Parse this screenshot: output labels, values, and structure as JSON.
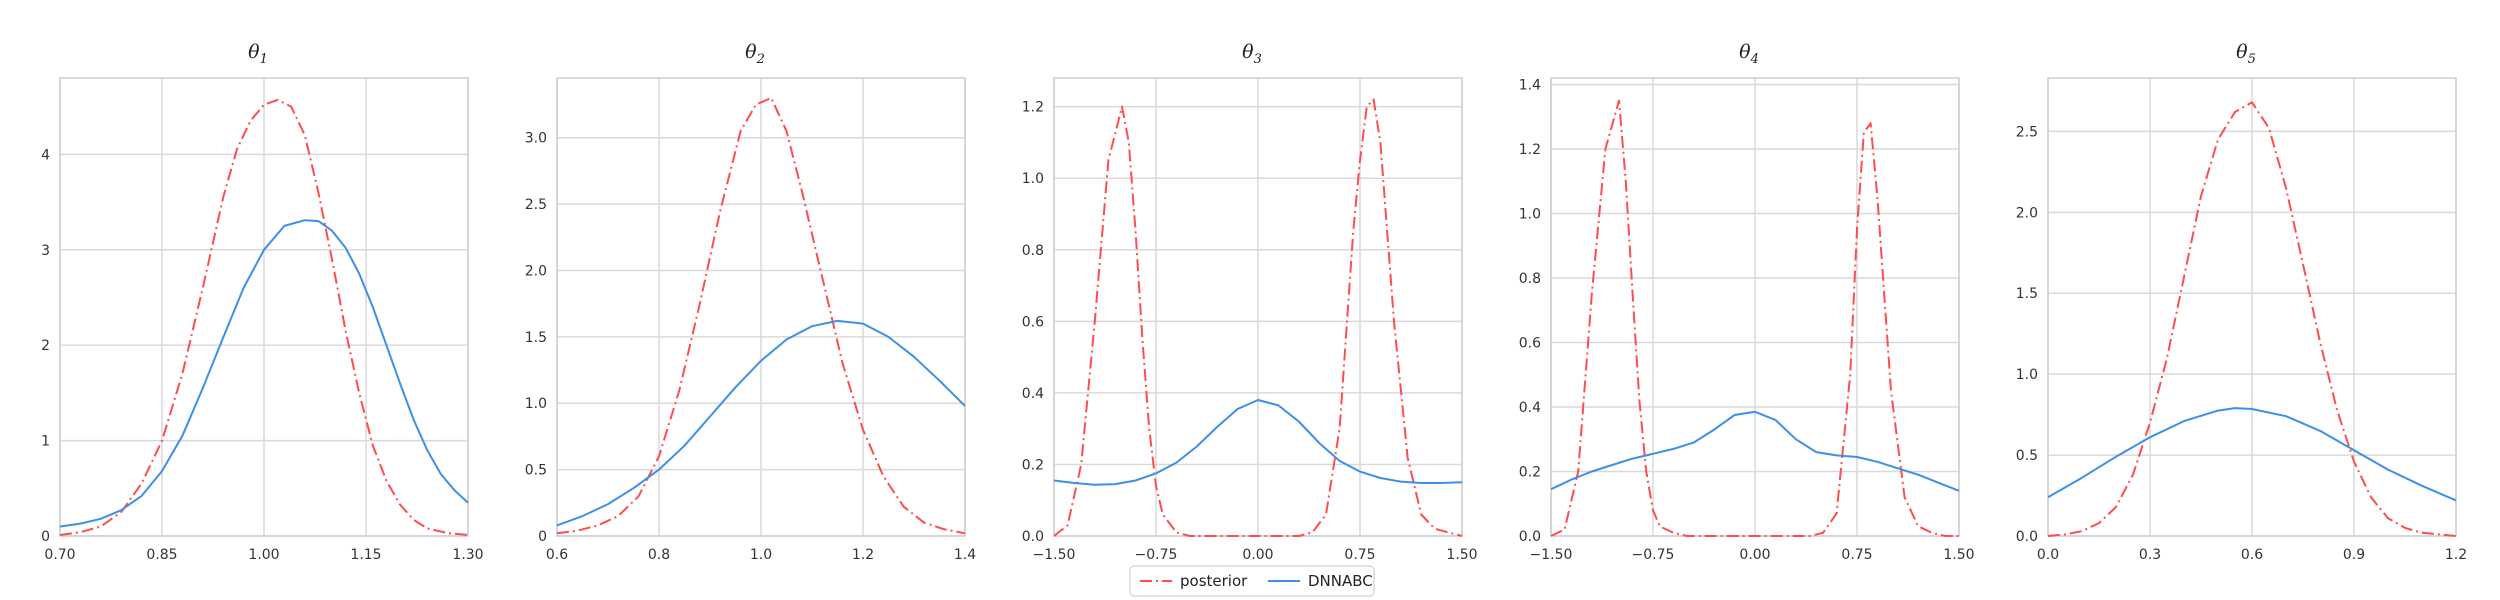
{
  "legend": {
    "placement": "bottom-center",
    "entries": [
      {
        "label": "posterior",
        "color": "#ff4d4d",
        "style": "dashdot"
      },
      {
        "label": "DNNABC",
        "color": "#3d8fe8",
        "style": "solid"
      }
    ]
  },
  "chart_data": [
    {
      "type": "line",
      "title_symbol": "θ",
      "title_sub": "1",
      "xlim": [
        0.7,
        1.3
      ],
      "ylim": [
        0,
        4.8
      ],
      "xticks": [
        0.7,
        0.85,
        1.0,
        1.15,
        1.3
      ],
      "xtick_labels": [
        "0.70",
        "0.85",
        "1.00",
        "1.15",
        "1.30"
      ],
      "yticks": [
        0,
        1,
        2,
        3,
        4
      ],
      "ytick_labels": [
        "0",
        "1",
        "2",
        "3",
        "4"
      ],
      "grid": true,
      "series": [
        {
          "name": "posterior",
          "color": "#ff4d4d",
          "style": "dashdot",
          "x": [
            0.7,
            0.73,
            0.76,
            0.79,
            0.82,
            0.85,
            0.88,
            0.91,
            0.94,
            0.96,
            0.98,
            1.0,
            1.02,
            1.04,
            1.06,
            1.08,
            1.1,
            1.12,
            1.14,
            1.16,
            1.18,
            1.2,
            1.22,
            1.24,
            1.27,
            1.3
          ],
          "y": [
            0.01,
            0.04,
            0.1,
            0.25,
            0.55,
            1.0,
            1.7,
            2.6,
            3.55,
            4.05,
            4.35,
            4.52,
            4.57,
            4.5,
            4.2,
            3.6,
            2.9,
            2.15,
            1.5,
            0.95,
            0.58,
            0.33,
            0.17,
            0.08,
            0.03,
            0.01
          ]
        },
        {
          "name": "DNNABC",
          "color": "#3d8fe8",
          "style": "solid",
          "x": [
            0.7,
            0.73,
            0.76,
            0.79,
            0.82,
            0.85,
            0.88,
            0.91,
            0.94,
            0.97,
            1.0,
            1.03,
            1.06,
            1.08,
            1.1,
            1.12,
            1.14,
            1.16,
            1.18,
            1.2,
            1.22,
            1.24,
            1.26,
            1.28,
            1.3
          ],
          "y": [
            0.1,
            0.13,
            0.18,
            0.27,
            0.42,
            0.68,
            1.05,
            1.55,
            2.08,
            2.6,
            3.0,
            3.25,
            3.31,
            3.3,
            3.2,
            3.02,
            2.75,
            2.4,
            2.0,
            1.6,
            1.22,
            0.9,
            0.65,
            0.48,
            0.35
          ]
        }
      ]
    },
    {
      "type": "line",
      "title_symbol": "θ",
      "title_sub": "2",
      "xlim": [
        0.6,
        1.4
      ],
      "ylim": [
        0,
        3.45
      ],
      "xticks": [
        0.6,
        0.8,
        1.0,
        1.2,
        1.4
      ],
      "xtick_labels": [
        "0.6",
        "0.8",
        "1.0",
        "1.2",
        "1.4"
      ],
      "yticks": [
        0,
        0.5,
        1.0,
        1.5,
        2.0,
        2.5,
        3.0
      ],
      "ytick_labels": [
        "0",
        "0.5",
        "1.0",
        "1.5",
        "2.0",
        "2.5",
        "3.0"
      ],
      "grid": true,
      "series": [
        {
          "name": "posterior",
          "color": "#ff4d4d",
          "style": "dashdot",
          "x": [
            0.6,
            0.64,
            0.68,
            0.72,
            0.76,
            0.8,
            0.84,
            0.88,
            0.92,
            0.96,
            0.99,
            1.02,
            1.05,
            1.08,
            1.12,
            1.16,
            1.2,
            1.24,
            1.28,
            1.32,
            1.36,
            1.4
          ],
          "y": [
            0.02,
            0.04,
            0.08,
            0.15,
            0.3,
            0.6,
            1.1,
            1.75,
            2.45,
            3.05,
            3.25,
            3.3,
            3.05,
            2.6,
            1.95,
            1.3,
            0.8,
            0.45,
            0.22,
            0.1,
            0.05,
            0.02
          ]
        },
        {
          "name": "DNNABC",
          "color": "#3d8fe8",
          "style": "solid",
          "x": [
            0.6,
            0.65,
            0.7,
            0.75,
            0.8,
            0.85,
            0.9,
            0.95,
            1.0,
            1.05,
            1.1,
            1.15,
            1.2,
            1.25,
            1.3,
            1.35,
            1.4
          ],
          "y": [
            0.08,
            0.15,
            0.24,
            0.36,
            0.5,
            0.68,
            0.9,
            1.12,
            1.32,
            1.48,
            1.58,
            1.62,
            1.6,
            1.5,
            1.35,
            1.17,
            0.98
          ]
        }
      ]
    },
    {
      "type": "line",
      "title_symbol": "θ",
      "title_sub": "3",
      "xlim": [
        -1.5,
        1.5
      ],
      "ylim": [
        0,
        1.28
      ],
      "xticks": [
        -1.5,
        -0.75,
        0.0,
        0.75,
        1.5
      ],
      "xtick_labels": [
        "−1.50",
        "−0.75",
        "0.00",
        "0.75",
        "1.50"
      ],
      "yticks": [
        0,
        0.2,
        0.4,
        0.6,
        0.8,
        1.0,
        1.2
      ],
      "ytick_labels": [
        "0.0",
        "0.2",
        "0.4",
        "0.6",
        "0.8",
        "1.0",
        "1.2"
      ],
      "grid": true,
      "series": [
        {
          "name": "posterior",
          "color": "#ff4d4d",
          "style": "dashdot",
          "x": [
            -1.5,
            -1.4,
            -1.3,
            -1.2,
            -1.1,
            -1.0,
            -0.95,
            -0.9,
            -0.85,
            -0.8,
            -0.75,
            -0.7,
            -0.6,
            -0.5,
            -0.4,
            -0.3,
            -0.2,
            0.0,
            0.2,
            0.3,
            0.4,
            0.5,
            0.6,
            0.7,
            0.75,
            0.8,
            0.85,
            0.9,
            0.95,
            1.0,
            1.1,
            1.2,
            1.3,
            1.4,
            1.5
          ],
          "y": [
            0.0,
            0.03,
            0.2,
            0.6,
            1.05,
            1.2,
            1.1,
            0.85,
            0.55,
            0.3,
            0.14,
            0.06,
            0.01,
            0.0,
            0.0,
            0.0,
            0.0,
            0.0,
            0.0,
            0.0,
            0.01,
            0.06,
            0.3,
            0.85,
            1.05,
            1.2,
            1.22,
            1.1,
            0.85,
            0.6,
            0.22,
            0.06,
            0.02,
            0.01,
            0.0
          ]
        },
        {
          "name": "DNNABC",
          "color": "#3d8fe8",
          "style": "solid",
          "x": [
            -1.5,
            -1.35,
            -1.2,
            -1.05,
            -0.9,
            -0.75,
            -0.6,
            -0.45,
            -0.3,
            -0.15,
            0.0,
            0.15,
            0.3,
            0.45,
            0.6,
            0.75,
            0.9,
            1.05,
            1.2,
            1.35,
            1.5
          ],
          "y": [
            0.155,
            0.148,
            0.143,
            0.145,
            0.155,
            0.175,
            0.205,
            0.25,
            0.305,
            0.355,
            0.38,
            0.365,
            0.32,
            0.26,
            0.21,
            0.18,
            0.162,
            0.152,
            0.148,
            0.148,
            0.15
          ]
        }
      ]
    },
    {
      "type": "line",
      "title_symbol": "θ",
      "title_sub": "4",
      "xlim": [
        -1.5,
        1.5
      ],
      "ylim": [
        0,
        1.42
      ],
      "xticks": [
        -1.5,
        -0.75,
        0.0,
        0.75,
        1.5
      ],
      "xtick_labels": [
        "−1.50",
        "−0.75",
        "0.00",
        "0.75",
        "1.50"
      ],
      "yticks": [
        0,
        0.2,
        0.4,
        0.6,
        0.8,
        1.0,
        1.2,
        1.4
      ],
      "ytick_labels": [
        "0.0",
        "0.2",
        "0.4",
        "0.6",
        "0.8",
        "1.0",
        "1.2",
        "1.4"
      ],
      "grid": true,
      "series": [
        {
          "name": "posterior",
          "color": "#ff4d4d",
          "style": "dashdot",
          "x": [
            -1.5,
            -1.4,
            -1.3,
            -1.2,
            -1.1,
            -1.0,
            -0.95,
            -0.9,
            -0.85,
            -0.8,
            -0.75,
            -0.7,
            -0.6,
            -0.5,
            -0.4,
            -0.2,
            0.0,
            0.2,
            0.4,
            0.5,
            0.6,
            0.7,
            0.75,
            0.8,
            0.85,
            0.9,
            0.95,
            1.0,
            1.1,
            1.2,
            1.3,
            1.4,
            1.5
          ],
          "y": [
            0.0,
            0.02,
            0.2,
            0.75,
            1.2,
            1.35,
            1.1,
            0.75,
            0.42,
            0.2,
            0.08,
            0.03,
            0.01,
            0.0,
            0.0,
            0.0,
            0.0,
            0.0,
            0.0,
            0.01,
            0.07,
            0.5,
            0.95,
            1.25,
            1.28,
            1.05,
            0.75,
            0.45,
            0.12,
            0.03,
            0.01,
            0.0,
            0.0
          ]
        },
        {
          "name": "DNNABC",
          "color": "#3d8fe8",
          "style": "solid",
          "x": [
            -1.5,
            -1.35,
            -1.2,
            -1.05,
            -0.9,
            -0.75,
            -0.6,
            -0.45,
            -0.3,
            -0.15,
            0.0,
            0.15,
            0.3,
            0.45,
            0.6,
            0.75,
            0.9,
            1.05,
            1.2,
            1.35,
            1.5
          ],
          "y": [
            0.145,
            0.175,
            0.2,
            0.22,
            0.24,
            0.255,
            0.27,
            0.29,
            0.33,
            0.375,
            0.385,
            0.36,
            0.3,
            0.26,
            0.25,
            0.245,
            0.23,
            0.21,
            0.19,
            0.165,
            0.14
          ]
        }
      ]
    },
    {
      "type": "line",
      "title_symbol": "θ",
      "title_sub": "5",
      "xlim": [
        0.0,
        1.2
      ],
      "ylim": [
        0,
        2.83
      ],
      "xticks": [
        0.0,
        0.3,
        0.6,
        0.9,
        1.2
      ],
      "xtick_labels": [
        "0.0",
        "0.3",
        "0.6",
        "0.9",
        "1.2"
      ],
      "yticks": [
        0,
        0.5,
        1.0,
        1.5,
        2.0,
        2.5
      ],
      "ytick_labels": [
        "0.0",
        "0.5",
        "1.0",
        "1.5",
        "2.0",
        "2.5"
      ],
      "grid": true,
      "series": [
        {
          "name": "posterior",
          "color": "#ff4d4d",
          "style": "dashdot",
          "x": [
            0.0,
            0.05,
            0.1,
            0.15,
            0.2,
            0.25,
            0.3,
            0.35,
            0.4,
            0.45,
            0.5,
            0.55,
            0.6,
            0.65,
            0.7,
            0.75,
            0.8,
            0.85,
            0.9,
            0.95,
            1.0,
            1.05,
            1.1,
            1.15,
            1.2
          ],
          "y": [
            0.0,
            0.01,
            0.03,
            0.08,
            0.18,
            0.38,
            0.7,
            1.1,
            1.6,
            2.1,
            2.45,
            2.62,
            2.68,
            2.52,
            2.15,
            1.68,
            1.2,
            0.78,
            0.46,
            0.24,
            0.11,
            0.05,
            0.02,
            0.01,
            0.0
          ]
        },
        {
          "name": "DNNABC",
          "color": "#3d8fe8",
          "style": "solid",
          "x": [
            0.0,
            0.1,
            0.2,
            0.3,
            0.4,
            0.5,
            0.55,
            0.6,
            0.7,
            0.8,
            0.9,
            1.0,
            1.1,
            1.2
          ],
          "y": [
            0.24,
            0.36,
            0.49,
            0.61,
            0.71,
            0.775,
            0.79,
            0.785,
            0.74,
            0.65,
            0.53,
            0.41,
            0.31,
            0.22
          ]
        }
      ]
    }
  ]
}
